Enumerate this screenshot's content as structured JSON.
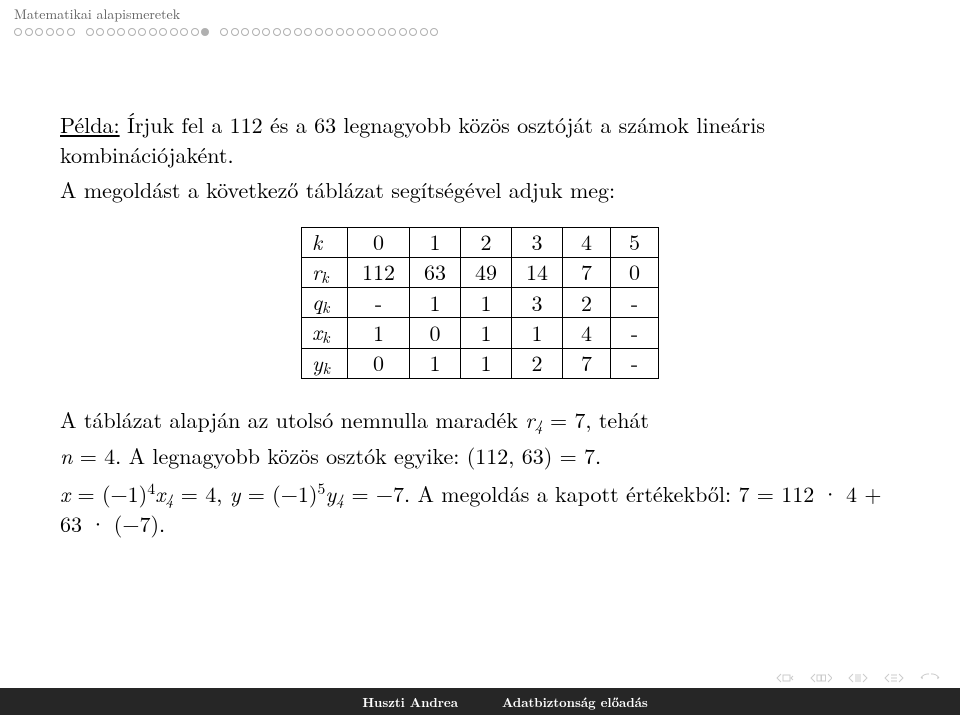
{
  "header": {
    "section_title": "Matematikai alapismeretek",
    "progress": {
      "groups": [
        6,
        12,
        21
      ],
      "filled_group": 1,
      "filled_index": 11,
      "dot_border": "#b0b0b0"
    }
  },
  "content": {
    "example_label": "Példa:",
    "example_text": "Írjuk fel a 112 és a 63 legnagyobb közös osztóját a számok lineáris kombinációjaként.",
    "solution_intro": "A megoldást a következő táblázat segítségével adjuk meg:",
    "table": {
      "row_labels": [
        "k",
        "r_k",
        "q_k",
        "x_k",
        "y_k"
      ],
      "rows": [
        [
          "0",
          "1",
          "2",
          "3",
          "4",
          "5"
        ],
        [
          "112",
          "63",
          "49",
          "14",
          "7",
          "0"
        ],
        [
          "-",
          "1",
          "1",
          "3",
          "2",
          "-"
        ],
        [
          "1",
          "0",
          "1",
          "1",
          "4",
          "-"
        ],
        [
          "0",
          "1",
          "1",
          "2",
          "7",
          "-"
        ]
      ]
    },
    "conclusion_line1_a": "A táblázat alapján az utolsó nemnulla maradék ",
    "conclusion_line1_b": " = 7, tehát",
    "conclusion_line2_a": " = 4. A legnagyobb közös osztók egyike: (112, 63) = 7.",
    "conclusion_line3": " A megoldás a kapott értékekből: 7 = 112 · 4 + 63 · (−7)."
  },
  "footer": {
    "author": "Huszti Andrea",
    "title": "Adatbiztonság előadás"
  },
  "colors": {
    "bg": "#ffffff",
    "text": "#000000",
    "header_text": "#606060",
    "footer_bg": "#262626",
    "footer_text": "#ffffff",
    "nav_icon": "#c8c8c8"
  }
}
